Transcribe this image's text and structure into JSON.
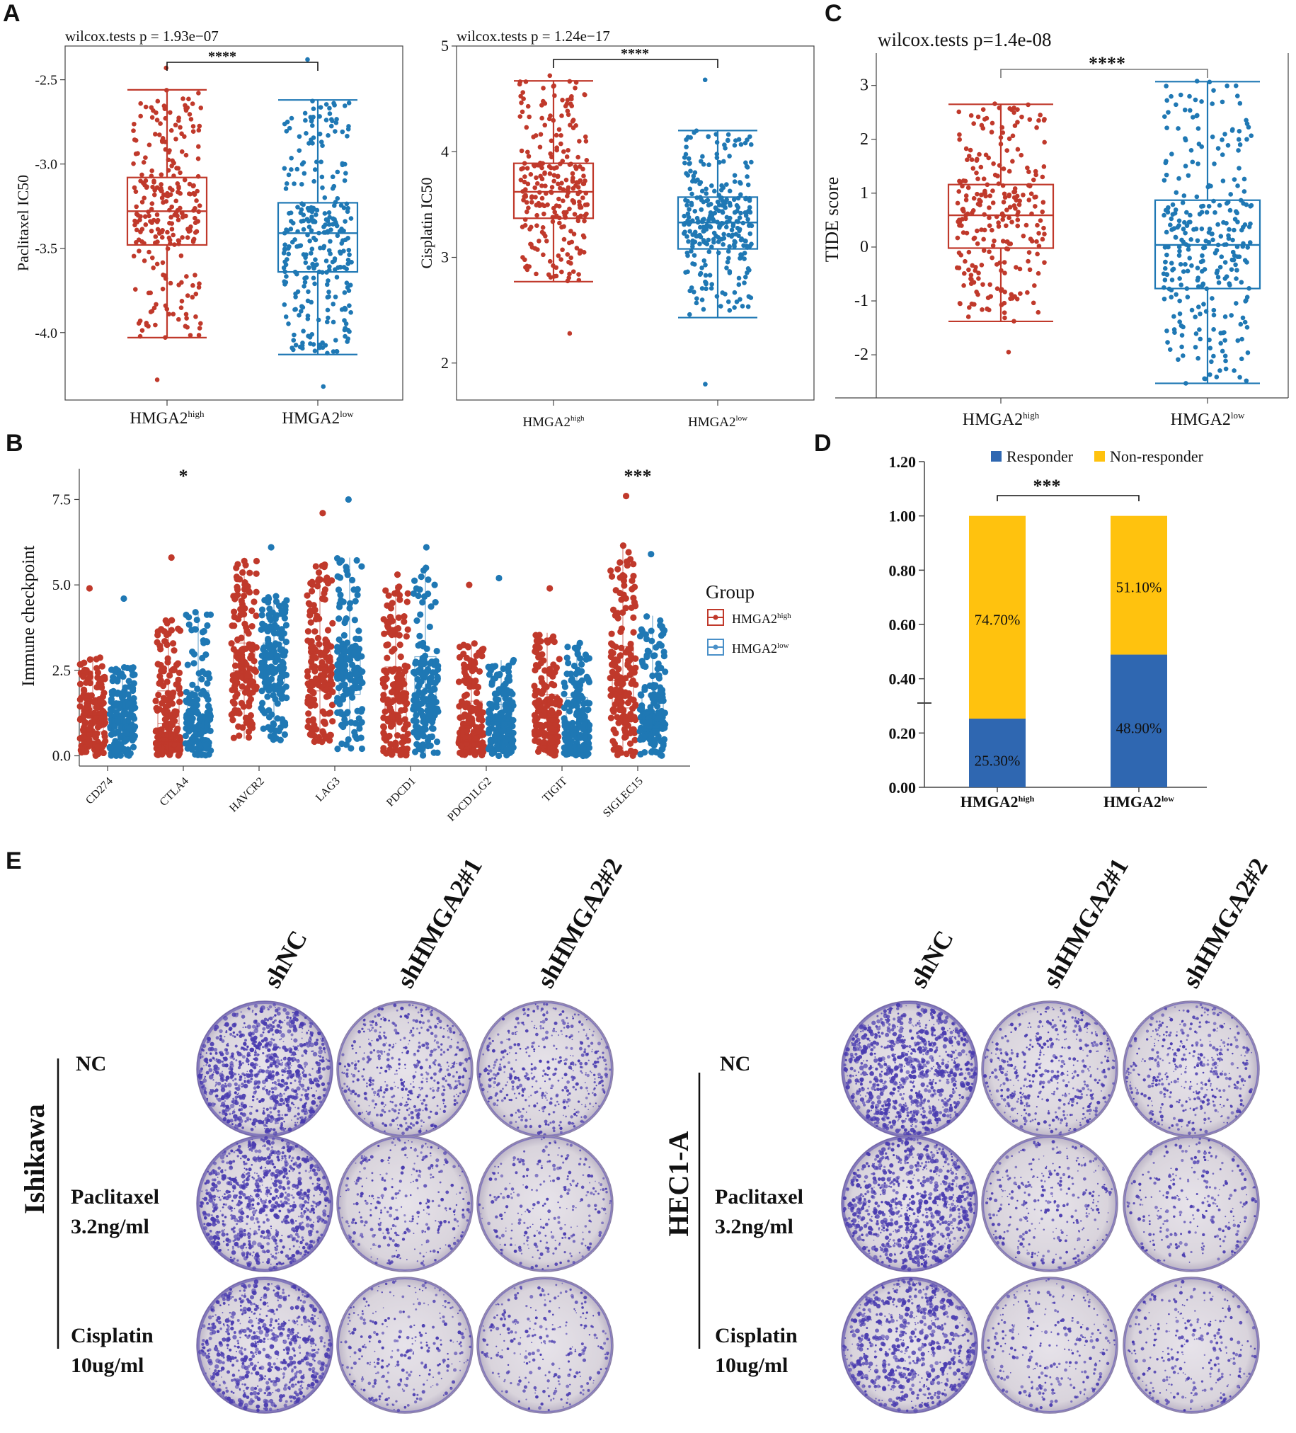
{
  "colors": {
    "high": "#c0392b",
    "low": "#1f78b4",
    "responder": "#2f67b1",
    "nonresponder": "#ffc20e",
    "crystal": "#4a3cb0",
    "plate": "#d9d4dc"
  },
  "panels": {
    "A": "A",
    "B": "B",
    "C": "C",
    "D": "D",
    "E": "E"
  },
  "chart_data": [
    {
      "id": "A1",
      "type": "box",
      "title": "wilcox.tests p = 1.93e−07",
      "signif": "****",
      "ylabel": "Paclitaxel IC50",
      "ylim": [
        -4.4,
        -2.3
      ],
      "yticks": [
        -4.0,
        -3.5,
        -3.0,
        -2.5
      ],
      "ytick_labels": [
        "-4.0",
        "-3.5",
        "-3.0",
        "-2.5"
      ],
      "groups": [
        {
          "base": "HMGA2",
          "sup": "high",
          "min": -4.03,
          "q1": -3.48,
          "median": -3.28,
          "q3": -3.08,
          "max": -2.56,
          "n": 260,
          "outliers": [
            -2.43,
            -4.28
          ]
        },
        {
          "base": "HMGA2",
          "sup": "low",
          "min": -4.13,
          "q1": -3.64,
          "median": -3.41,
          "q3": -3.23,
          "max": -2.62,
          "n": 300,
          "outliers": [
            -2.38,
            -4.32
          ]
        }
      ]
    },
    {
      "id": "A2",
      "type": "box",
      "title": "wilcox.tests p = 1.24e−17",
      "signif": "****",
      "ylabel": "Cisplatin IC50",
      "ylim": [
        1.65,
        5.0
      ],
      "yticks": [
        2,
        3,
        4,
        5
      ],
      "ytick_labels": [
        "2",
        "3",
        "4",
        "5"
      ],
      "groups": [
        {
          "base": "HMGA2",
          "sup": "high",
          "min": 2.77,
          "q1": 3.37,
          "median": 3.62,
          "q3": 3.89,
          "max": 4.67,
          "n": 260,
          "outliers": [
            2.28,
            4.72
          ]
        },
        {
          "base": "HMGA2",
          "sup": "low",
          "min": 2.43,
          "q1": 3.08,
          "median": 3.33,
          "q3": 3.57,
          "max": 4.2,
          "n": 300,
          "outliers": [
            1.8,
            4.68
          ]
        }
      ]
    },
    {
      "id": "C",
      "type": "box",
      "title": "wilcox.tests p=1.4e-08",
      "signif": "****",
      "ylabel": "TIDE score",
      "ylim": [
        -2.8,
        3.6
      ],
      "yticks": [
        -2,
        -1,
        0,
        1,
        2,
        3
      ],
      "ytick_labels": [
        "-2",
        "-1",
        "0",
        "1",
        "2",
        "3"
      ],
      "groups": [
        {
          "base": "HMGA2",
          "sup": "high",
          "min": -1.38,
          "q1": -0.02,
          "median": 0.59,
          "q3": 1.16,
          "max": 2.65,
          "n": 260,
          "outliers": [
            -1.95,
            2.66
          ]
        },
        {
          "base": "HMGA2",
          "sup": "low",
          "min": -2.53,
          "q1": -0.77,
          "median": 0.04,
          "q3": 0.87,
          "max": 3.07,
          "n": 300,
          "outliers": [
            3.08,
            -2.53
          ]
        }
      ]
    },
    {
      "id": "B",
      "type": "box",
      "ylabel": "Immune checkpoint",
      "ylim": [
        -0.3,
        8.4
      ],
      "yticks": [
        0.0,
        2.5,
        5.0,
        7.5
      ],
      "ytick_labels": [
        "0.0",
        "2.5",
        "5.0",
        "7.5"
      ],
      "legend_title": "Group",
      "legend": [
        {
          "base": "HMGA2",
          "sup": "high"
        },
        {
          "base": "HMGA2",
          "sup": "low"
        }
      ],
      "categories": [
        "CD274",
        "CTLA4",
        "HAVCR2",
        "LAG3",
        "PDCD1",
        "PDCD1LG2",
        "TIGIT",
        "SIGLEC15"
      ],
      "signif": [
        "",
        "*",
        "",
        "",
        "",
        "",
        "",
        "***"
      ],
      "series": [
        {
          "name": "HMGA2high",
          "values": [
            {
              "min": 0,
              "q1": 0.7,
              "median": 1.2,
              "q3": 1.7,
              "max": 2.9,
              "top": 4.9
            },
            {
              "min": 0,
              "q1": 0.4,
              "median": 0.95,
              "q3": 1.9,
              "max": 4.0,
              "top": 5.8
            },
            {
              "min": 0.5,
              "q1": 1.9,
              "median": 2.5,
              "q3": 3.3,
              "max": 5.7,
              "top": 5.7
            },
            {
              "min": 0.4,
              "q1": 1.9,
              "median": 2.6,
              "q3": 3.3,
              "max": 5.6,
              "top": 7.1
            },
            {
              "min": 0,
              "q1": 1.0,
              "median": 1.7,
              "q3": 2.6,
              "max": 5.0,
              "top": 5.3
            },
            {
              "min": 0,
              "q1": 0.4,
              "median": 0.9,
              "q3": 1.6,
              "max": 3.3,
              "top": 5.0
            },
            {
              "min": 0,
              "q1": 0.6,
              "median": 1.1,
              "q3": 1.8,
              "max": 3.6,
              "top": 4.9
            },
            {
              "min": 0,
              "q1": 1.4,
              "median": 2.2,
              "q3": 3.2,
              "max": 6.2,
              "top": 7.6
            }
          ]
        },
        {
          "name": "HMGA2low",
          "values": [
            {
              "min": 0,
              "q1": 0.7,
              "median": 1.15,
              "q3": 1.6,
              "max": 2.6,
              "top": 4.6
            },
            {
              "min": 0,
              "q1": 0.7,
              "median": 1.2,
              "q3": 1.9,
              "max": 4.2,
              "top": 4.2
            },
            {
              "min": 0.4,
              "q1": 1.9,
              "median": 2.6,
              "q3": 3.3,
              "max": 4.7,
              "top": 6.1
            },
            {
              "min": 0.2,
              "q1": 1.8,
              "median": 2.5,
              "q3": 3.2,
              "max": 5.8,
              "top": 7.5
            },
            {
              "min": 0,
              "q1": 1.2,
              "median": 2.0,
              "q3": 2.9,
              "max": 5.6,
              "top": 6.1
            },
            {
              "min": 0,
              "q1": 0.5,
              "median": 1.0,
              "q3": 1.5,
              "max": 2.8,
              "top": 5.2
            },
            {
              "min": 0,
              "q1": 0.5,
              "median": 1.0,
              "q3": 1.7,
              "max": 3.3,
              "top": 3.3
            },
            {
              "min": 0,
              "q1": 0.8,
              "median": 1.3,
              "q3": 2.0,
              "max": 4.1,
              "top": 5.9
            }
          ]
        }
      ]
    },
    {
      "id": "D",
      "type": "stacked_bar",
      "legend": [
        "Responder",
        "Non-responder"
      ],
      "signif": "***",
      "ylim": [
        0,
        1.2
      ],
      "yticks": [
        0,
        0.2,
        0.4,
        0.6,
        0.8,
        1.0,
        1.2
      ],
      "ytick_labels": [
        "0.00",
        "0.20",
        "0.40",
        "0.60",
        "0.80",
        "1.00",
        "1.20"
      ],
      "categories": [
        {
          "base": "HMGA2",
          "sup": "high"
        },
        {
          "base": "HMGA2",
          "sup": "low"
        }
      ],
      "series": [
        {
          "name": "Responder",
          "values": [
            0.253,
            0.489
          ],
          "labels": [
            "25.30%",
            "48.90%"
          ]
        },
        {
          "name": "Non-responder",
          "values": [
            0.747,
            0.511
          ],
          "labels": [
            "74.70%",
            "51.10%"
          ]
        }
      ]
    },
    {
      "id": "E",
      "type": "image_grid",
      "columns": [
        "shNC",
        "shHMGA2#1",
        "shHMGA2#2"
      ],
      "cell_lines": [
        "Ishikawa",
        "HEC1-A"
      ],
      "rows": [
        {
          "line1": "NC",
          "line2": ""
        },
        {
          "line1": "Paclitaxel",
          "line2": "3.2ng/ml"
        },
        {
          "line1": "Cisplatin",
          "line2": "10ug/ml"
        }
      ],
      "density": [
        [
          1.0,
          0.55,
          0.5
        ],
        [
          0.9,
          0.35,
          0.3
        ],
        [
          0.75,
          0.3,
          0.3
        ]
      ]
    }
  ]
}
